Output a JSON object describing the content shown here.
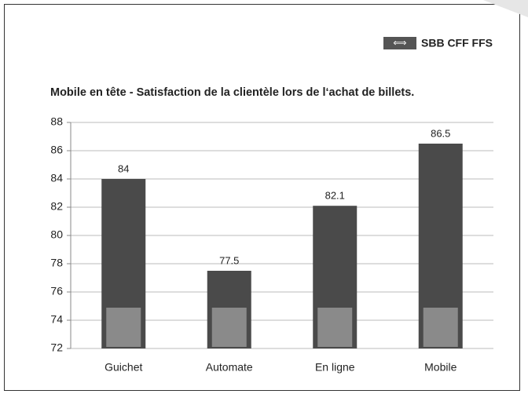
{
  "logo": "SBB CFF FFS",
  "chart_data": {
    "type": "bar",
    "title": "Mobile en tête - Satisfaction de la clientèle lors de l‘achat de billets.",
    "categories": [
      "Guichet",
      "Automate",
      "En ligne",
      "Mobile"
    ],
    "values": [
      84,
      77.5,
      82.1,
      86.5
    ],
    "color": "#4a4a4a",
    "ylim": [
      72,
      88
    ],
    "yticks": [
      72,
      74,
      76,
      78,
      80,
      82,
      84,
      86,
      88
    ],
    "grid": true
  }
}
